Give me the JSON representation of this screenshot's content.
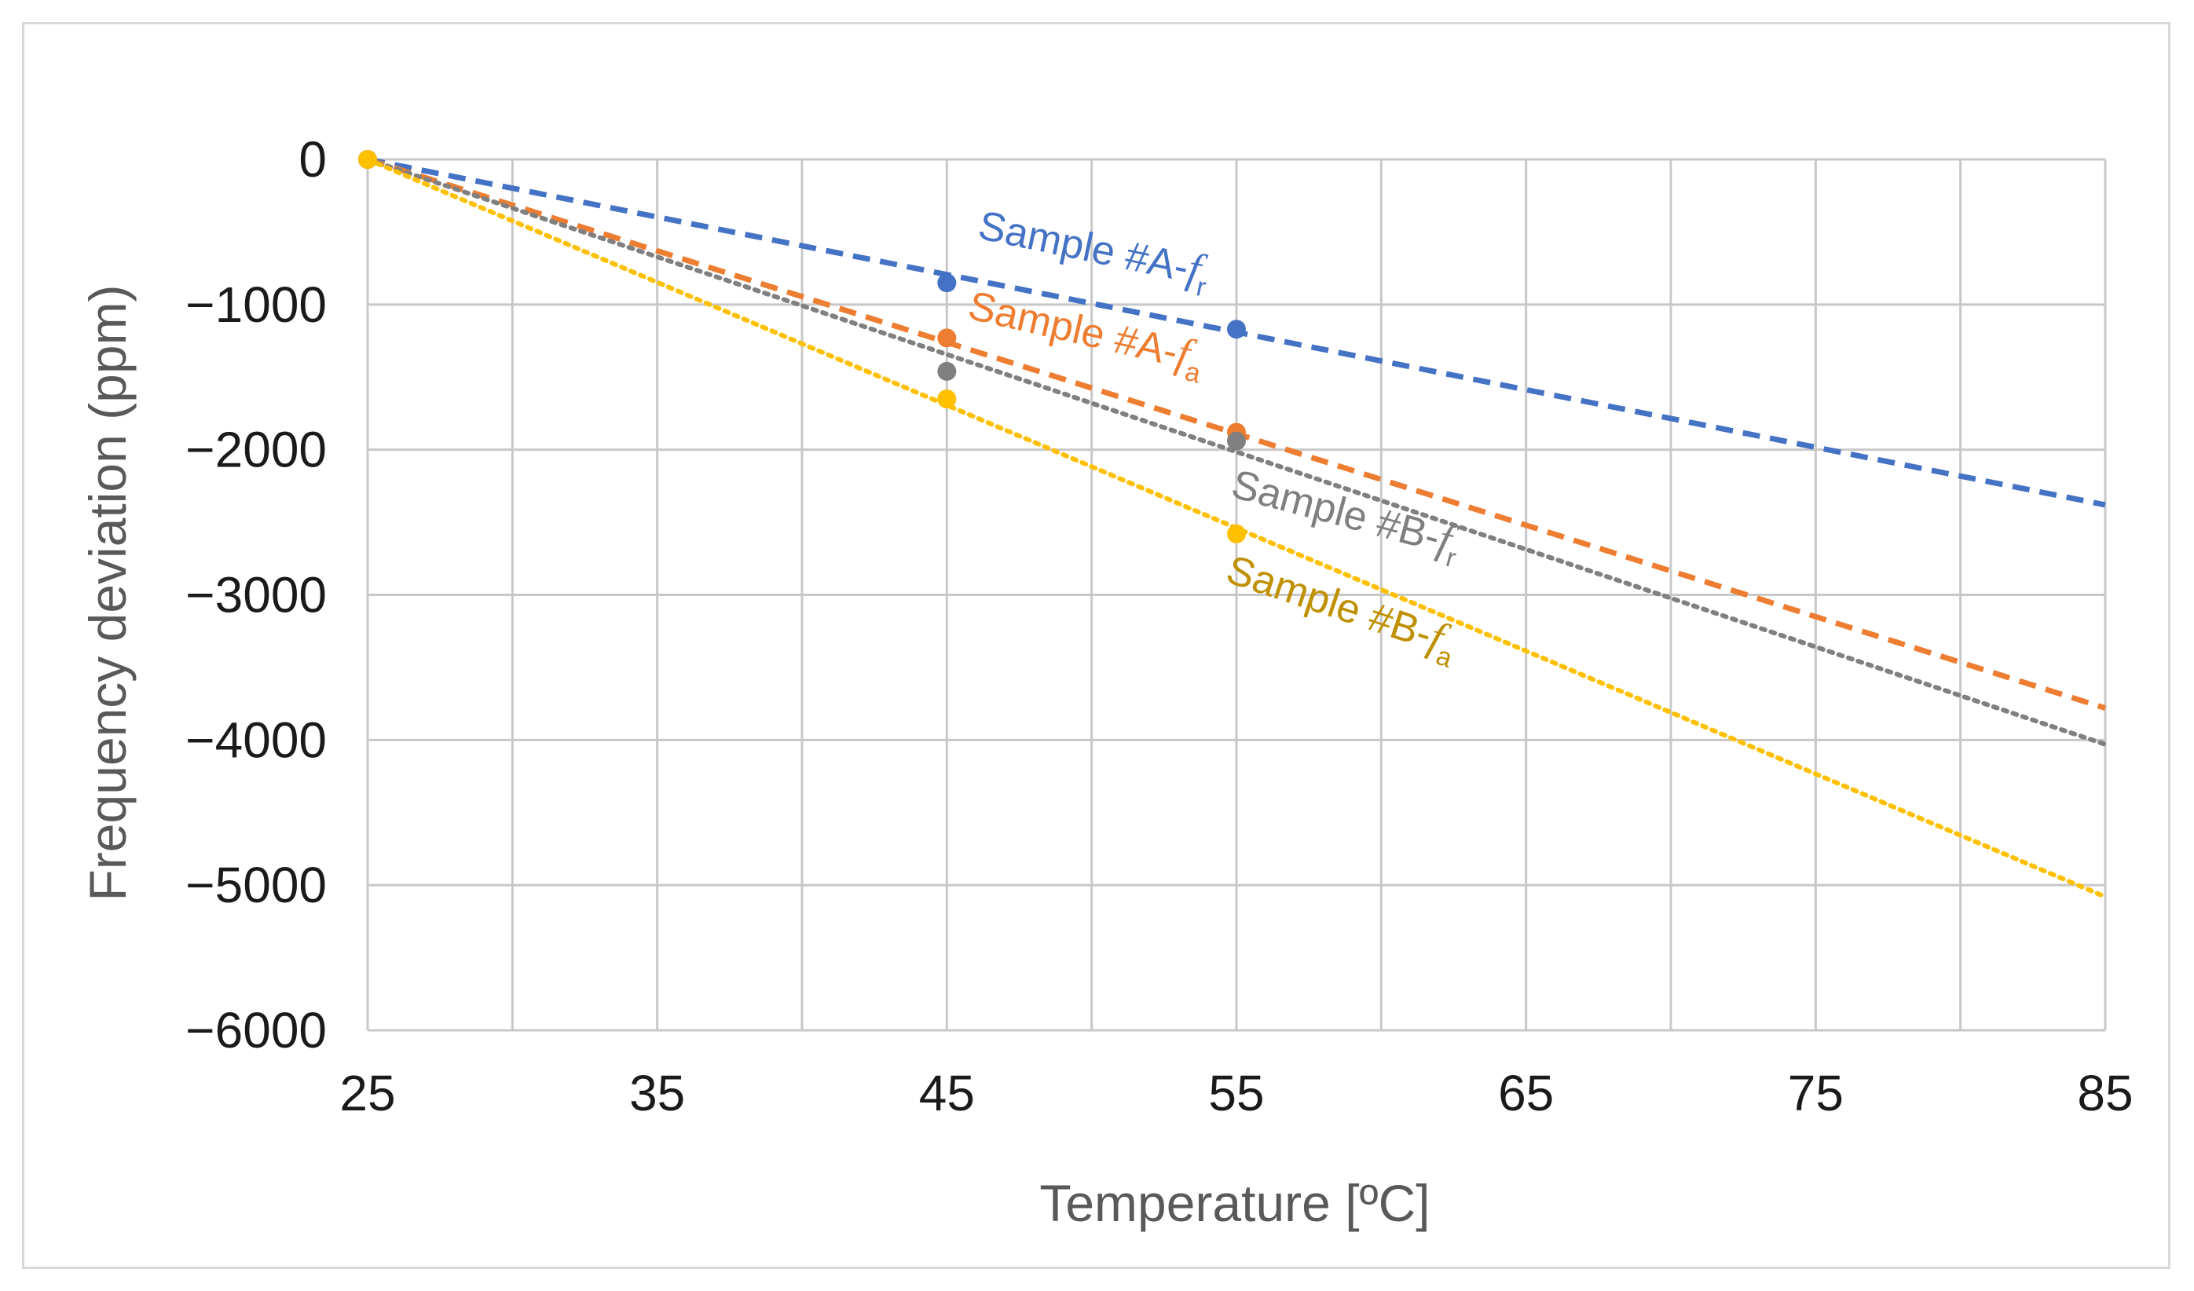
{
  "chart_data": {
    "type": "line",
    "title": "",
    "xlabel": "Temperature [ºC]",
    "ylabel": "Frequency deviation (ppm)",
    "xlim": [
      25,
      85
    ],
    "ylim": [
      -6000,
      0
    ],
    "grid": true,
    "x_ticks": [
      25,
      35,
      45,
      55,
      65,
      75,
      85
    ],
    "x_tick_labels": [
      "25",
      "35",
      "45",
      "55",
      "65",
      "75",
      "85"
    ],
    "y_ticks": [
      0,
      -1000,
      -2000,
      -3000,
      -4000,
      -5000,
      -6000
    ],
    "y_tick_labels": [
      "0",
      "−1000",
      "−2000",
      "−3000",
      "−4000",
      "−5000",
      "−6000"
    ],
    "series": [
      {
        "name": "Sample #A-fr",
        "label_main": "Sample #A-",
        "label_italic": "f",
        "label_sub": "r",
        "color": "#4472c4",
        "style": "dashed",
        "points": [
          {
            "x": 25,
            "y": 0
          },
          {
            "x": 45,
            "y": -850
          },
          {
            "x": 55,
            "y": -1170
          }
        ],
        "trend": [
          {
            "x": 25,
            "y": 0
          },
          {
            "x": 85,
            "y": -2380
          }
        ]
      },
      {
        "name": "Sample #A-fa",
        "label_main": "Sample #A-",
        "label_italic": "f",
        "label_sub": "a",
        "color": "#ed7d31",
        "style": "dashed",
        "points": [
          {
            "x": 25,
            "y": 0
          },
          {
            "x": 45,
            "y": -1230
          },
          {
            "x": 55,
            "y": -1880
          }
        ],
        "trend": [
          {
            "x": 25,
            "y": 0
          },
          {
            "x": 85,
            "y": -3780
          }
        ]
      },
      {
        "name": "Sample #B-fr",
        "label_main": "Sample #B-",
        "label_italic": "f",
        "label_sub": "r",
        "color": "#808080",
        "label_color": "#7f7f7f",
        "style": "dotted",
        "points": [
          {
            "x": 25,
            "y": 0
          },
          {
            "x": 45,
            "y": -1460
          },
          {
            "x": 55,
            "y": -1940
          }
        ],
        "trend": [
          {
            "x": 25,
            "y": 0
          },
          {
            "x": 85,
            "y": -4030
          }
        ]
      },
      {
        "name": "Sample #B-fa",
        "label_main": "Sample #B-",
        "label_italic": "f",
        "label_sub": "a",
        "color": "#ffc000",
        "label_color": "#bf9000",
        "style": "dotted",
        "points": [
          {
            "x": 25,
            "y": 0
          },
          {
            "x": 45,
            "y": -1650
          },
          {
            "x": 55,
            "y": -2580
          }
        ],
        "trend": [
          {
            "x": 25,
            "y": 0
          },
          {
            "x": 85,
            "y": -5080
          }
        ]
      }
    ]
  }
}
